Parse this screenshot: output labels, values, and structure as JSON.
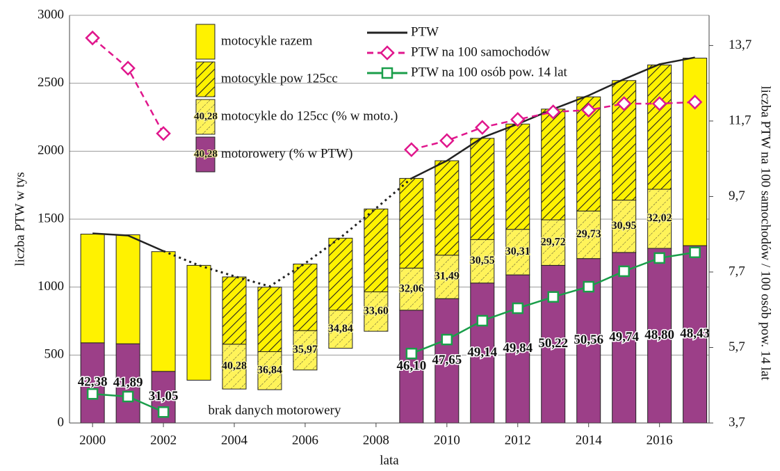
{
  "chart_data": {
    "type": "bar",
    "stacked": true,
    "xlabel": "lata",
    "ylabel": "liczba PTW w tys",
    "y2label": "liczba PTW na 100 samochodów / 100 osób pow. 14 lat",
    "annotation": "brak danych motorowery",
    "x": [
      2000,
      2001,
      2002,
      2003,
      2004,
      2005,
      2006,
      2007,
      2008,
      2009,
      2010,
      2011,
      2012,
      2013,
      2014,
      2015,
      2016,
      2017
    ],
    "xlim": [
      1999.35,
      2017.4
    ],
    "xticks": [
      2000,
      2002,
      2004,
      2006,
      2008,
      2010,
      2012,
      2014,
      2016
    ],
    "ylim": [
      0,
      3000
    ],
    "yticks": [
      0,
      500,
      1000,
      1500,
      2000,
      2500,
      3000
    ],
    "y2lim": [
      3.7,
      14.5
    ],
    "y2ticks": [
      {
        "value": 3.7,
        "label": "3,7"
      },
      {
        "value": 5.7,
        "label": "5,7"
      },
      {
        "value": 7.7,
        "label": "7,7"
      },
      {
        "value": 9.7,
        "label": "9,7"
      },
      {
        "value": 11.7,
        "label": "11,7"
      },
      {
        "value": 13.7,
        "label": "13,7"
      }
    ],
    "grid": true,
    "series": [
      {
        "type": "bar",
        "color": "none",
        "values": [
          null,
          null,
          null,
          315,
          250,
          245,
          390,
          550,
          675,
          null,
          null,
          null,
          null,
          null,
          null,
          null,
          null,
          null
        ]
      },
      {
        "name": "motorowery (% w PTW)",
        "type": "bar",
        "color": "#9c3f88",
        "legend_text": "40,28",
        "values": [
          590,
          583,
          380,
          null,
          null,
          null,
          null,
          null,
          null,
          830,
          915,
          1030,
          1090,
          1160,
          1210,
          1255,
          1285,
          1305
        ],
        "data_labels": [
          "42,38",
          "41,89",
          "31,05",
          null,
          null,
          null,
          null,
          null,
          null,
          "46,10",
          "47,65",
          "49,14",
          "49,84",
          "50,22",
          "50,56",
          "49,74",
          "48,80",
          "48,43"
        ]
      },
      {
        "name": "motocykle do 125cc (% w moto.)",
        "type": "bar",
        "color": "#fff200",
        "hatch": "light",
        "legend_text": "40,28",
        "values": [
          null,
          null,
          null,
          null,
          330,
          280,
          290,
          280,
          290,
          310,
          320,
          320,
          335,
          335,
          350,
          385,
          435,
          null
        ],
        "data_labels": [
          null,
          null,
          null,
          null,
          "40,28",
          "36,84",
          "35,97",
          "34,84",
          "33,60",
          "32,06",
          "31,49",
          "30,55",
          "30,31",
          "29,72",
          "29,73",
          "30,95",
          "32,02",
          null
        ]
      },
      {
        "name": "motocykle pow 125cc",
        "type": "bar",
        "color": "#fff200",
        "hatch": "dense",
        "values": [
          null,
          null,
          null,
          null,
          495,
          475,
          490,
          530,
          610,
          660,
          695,
          745,
          775,
          815,
          840,
          880,
          915,
          null
        ]
      },
      {
        "name": "motocykle razem",
        "type": "bar",
        "color": "#fff200",
        "values": [
          800,
          802,
          881,
          845,
          null,
          null,
          null,
          null,
          null,
          null,
          null,
          null,
          null,
          null,
          null,
          null,
          null,
          1380
        ]
      },
      {
        "name": "PTW",
        "type": "line",
        "color": "#222222",
        "values": [
          1395,
          1380,
          1265,
          null,
          null,
          null,
          null,
          null,
          null,
          1800,
          1930,
          2100,
          2200,
          2310,
          2410,
          2530,
          2640,
          2690
        ]
      },
      {
        "type": "line",
        "color": "#222222",
        "dash": "dotted",
        "values": [
          null,
          null,
          1265,
          1160,
          1080,
          1005,
          1175,
          1365,
          1580,
          1800,
          null,
          null,
          null,
          null,
          null,
          null,
          null,
          null
        ]
      },
      {
        "name": "PTW na 100 samochodów",
        "type": "line",
        "axis": "y2",
        "color": "#e0168c",
        "dash": "dashed",
        "marker": "diamond",
        "values": [
          13.9,
          13.1,
          11.37,
          null,
          null,
          null,
          null,
          null,
          null,
          10.94,
          11.18,
          11.53,
          11.74,
          11.94,
          11.99,
          12.16,
          12.16,
          12.2
        ]
      },
      {
        "name": "PTW na 100 osób pow. 14 lat",
        "type": "line",
        "axis": "y2",
        "color": "#1a9e4a",
        "marker": "square",
        "values": [
          4.47,
          4.4,
          3.99,
          null,
          null,
          null,
          null,
          null,
          null,
          5.54,
          5.91,
          6.41,
          6.74,
          7.04,
          7.31,
          7.72,
          8.07,
          8.22
        ]
      }
    ]
  }
}
